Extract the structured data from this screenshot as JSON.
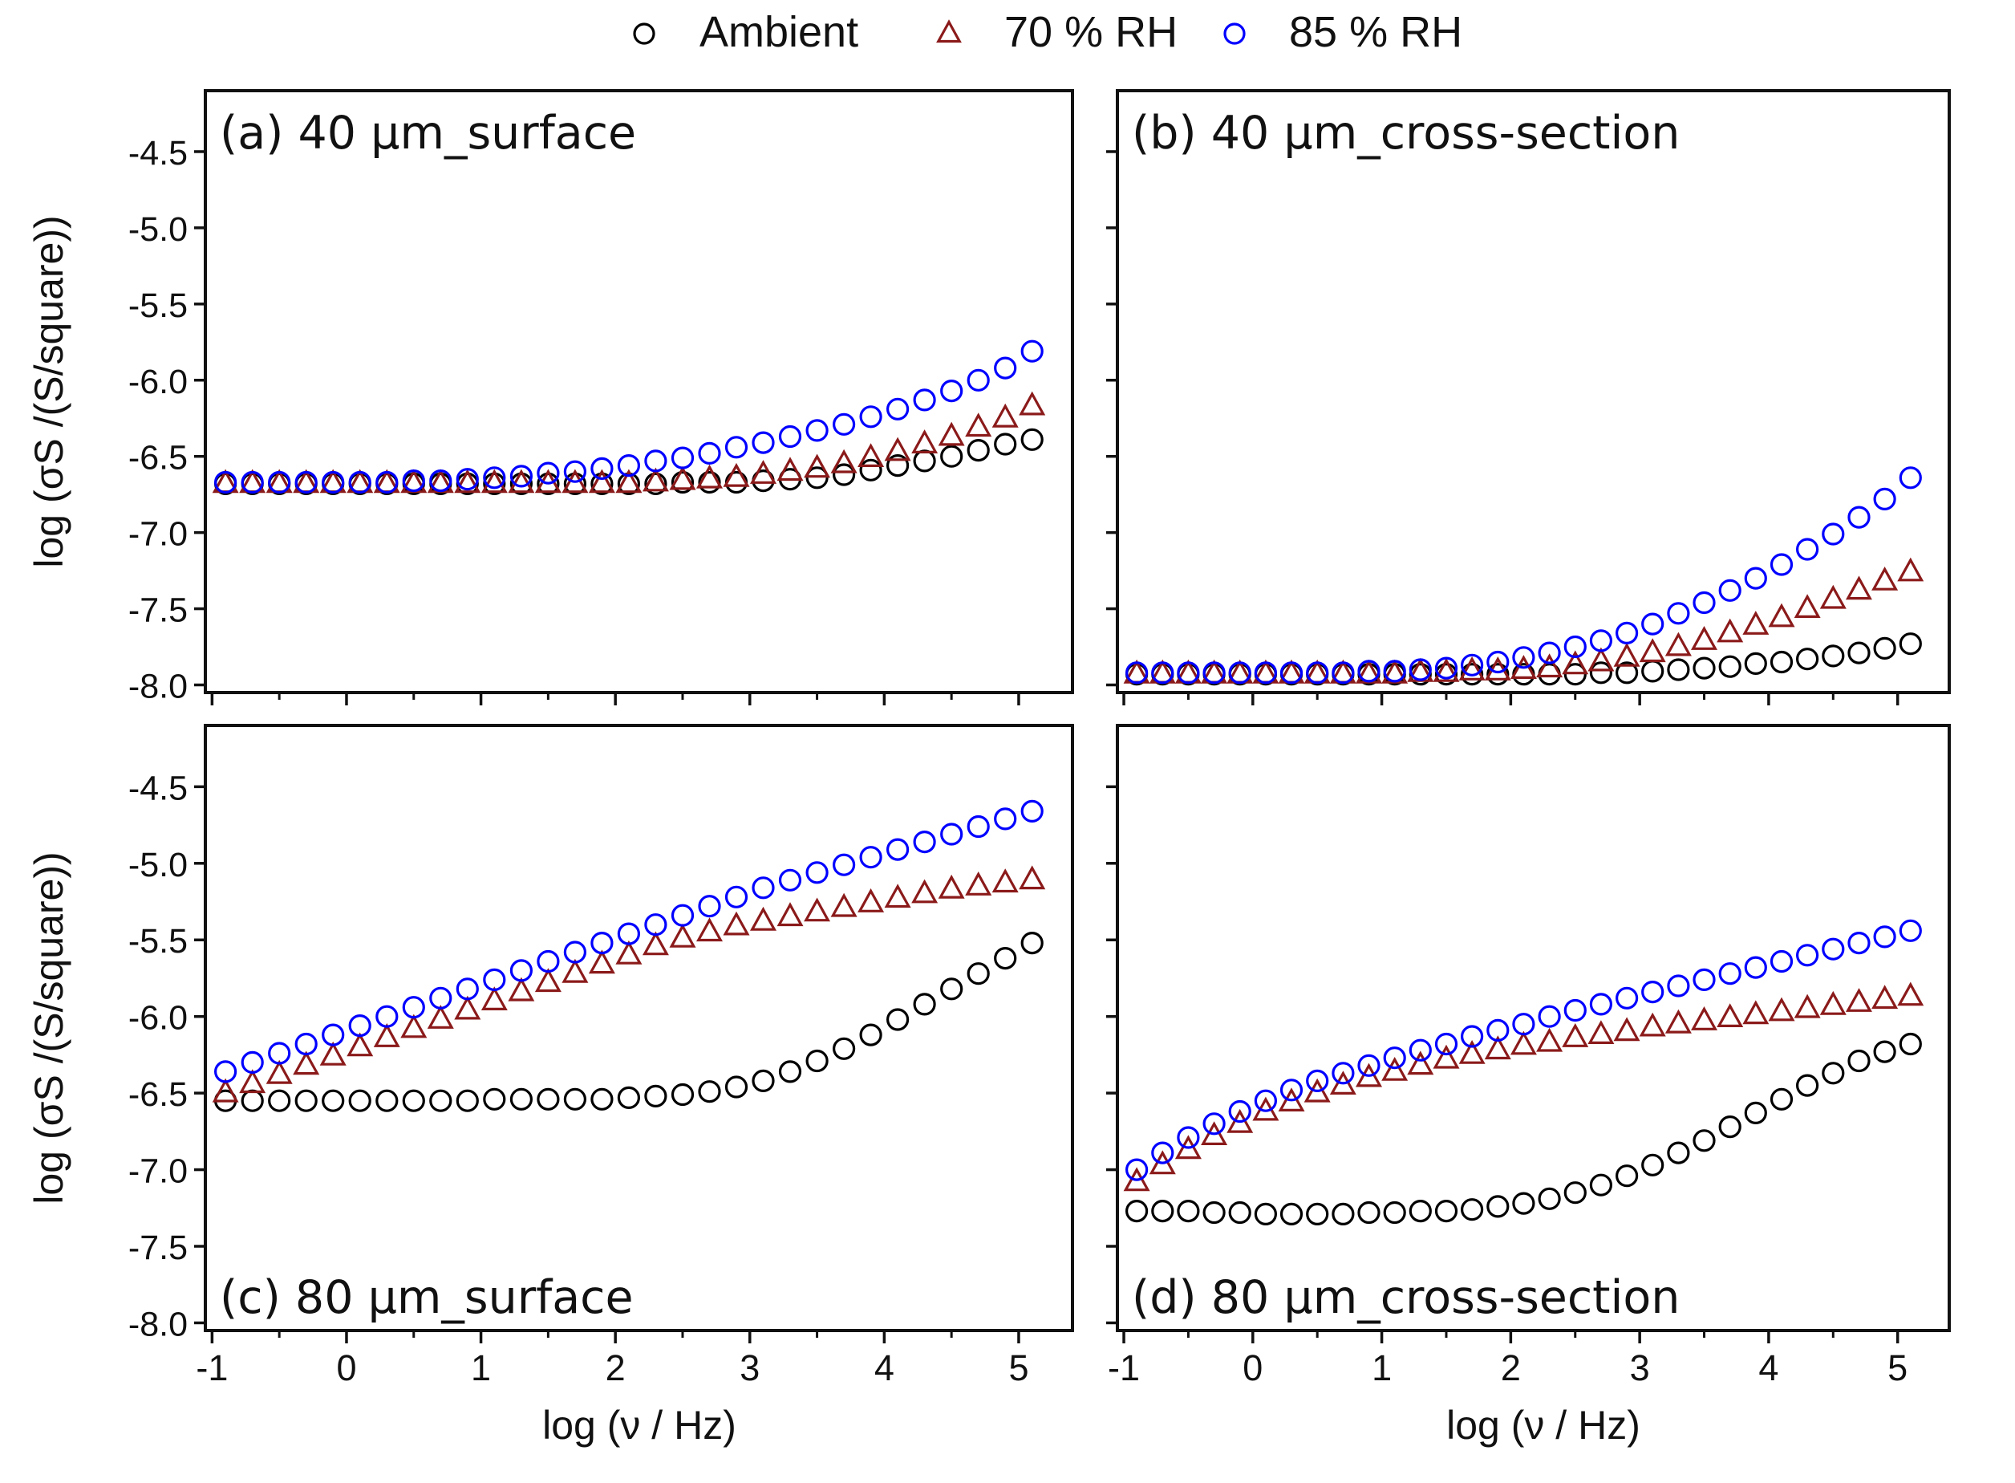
{
  "chart_data": {
    "type": "scatter",
    "layout": "2x2 grid",
    "legend": {
      "placement": "top-center",
      "entries": [
        {
          "name": "Ambient",
          "marker": "circle",
          "color": "#000000"
        },
        {
          "name": "70 % RH",
          "marker": "triangle",
          "color": "#8b1a1a"
        },
        {
          "name": "85 % RH",
          "marker": "circle",
          "color": "#0000ff"
        }
      ]
    },
    "xlabel": "log (ν / Hz)",
    "ylabel": "log (σS /(S/square))",
    "xlim": [
      -1.05,
      5.4
    ],
    "ylim": [
      -8.05,
      -4.1
    ],
    "xticks": [
      -1,
      0,
      1,
      2,
      3,
      4,
      5
    ],
    "xtick_labels": [
      "-1",
      "0",
      "1",
      "2",
      "3",
      "4",
      "5"
    ],
    "yticks": [
      -4.5,
      -5.0,
      -5.5,
      -6.0,
      -6.5,
      -7.0,
      -7.5,
      -8.0
    ],
    "ytick_labels": [
      "-4.5",
      "-5.0",
      "-5.5",
      "-6.0",
      "-6.5",
      "-7.0",
      "-7.5",
      "-8.0"
    ],
    "x": [
      -0.9,
      -0.7,
      -0.5,
      -0.3,
      -0.1,
      0.1,
      0.3,
      0.5,
      0.7,
      0.9,
      1.1,
      1.3,
      1.5,
      1.7,
      1.9,
      2.1,
      2.3,
      2.5,
      2.7,
      2.9,
      3.1,
      3.3,
      3.5,
      3.7,
      3.9,
      4.1,
      4.3,
      4.5,
      4.7,
      4.9,
      5.1
    ],
    "panels": [
      {
        "label": "(a) 40 μm_surface",
        "label_position": "top-left",
        "series": [
          {
            "name": "Ambient",
            "values": [
              -6.68,
              -6.68,
              -6.68,
              -6.68,
              -6.68,
              -6.68,
              -6.68,
              -6.68,
              -6.68,
              -6.68,
              -6.68,
              -6.68,
              -6.68,
              -6.68,
              -6.68,
              -6.68,
              -6.68,
              -6.67,
              -6.67,
              -6.67,
              -6.66,
              -6.65,
              -6.64,
              -6.62,
              -6.59,
              -6.56,
              -6.53,
              -6.5,
              -6.46,
              -6.42,
              -6.39
            ]
          },
          {
            "name": "70 % RH",
            "values": [
              -6.68,
              -6.68,
              -6.68,
              -6.68,
              -6.68,
              -6.68,
              -6.68,
              -6.68,
              -6.68,
              -6.68,
              -6.68,
              -6.68,
              -6.68,
              -6.68,
              -6.68,
              -6.68,
              -6.67,
              -6.66,
              -6.65,
              -6.64,
              -6.62,
              -6.6,
              -6.58,
              -6.55,
              -6.51,
              -6.47,
              -6.42,
              -6.37,
              -6.31,
              -6.25,
              -6.17
            ]
          },
          {
            "name": "85 % RH",
            "values": [
              -6.67,
              -6.67,
              -6.67,
              -6.67,
              -6.67,
              -6.67,
              -6.67,
              -6.66,
              -6.66,
              -6.65,
              -6.64,
              -6.63,
              -6.61,
              -6.6,
              -6.58,
              -6.56,
              -6.53,
              -6.51,
              -6.48,
              -6.44,
              -6.41,
              -6.37,
              -6.33,
              -6.29,
              -6.24,
              -6.19,
              -6.13,
              -6.07,
              -6.0,
              -5.92,
              -5.81
            ]
          }
        ]
      },
      {
        "label": "(b) 40 μm_cross-section",
        "label_position": "top-left",
        "series": [
          {
            "name": "Ambient",
            "values": [
              -7.93,
              -7.93,
              -7.93,
              -7.93,
              -7.93,
              -7.93,
              -7.93,
              -7.93,
              -7.93,
              -7.93,
              -7.93,
              -7.93,
              -7.93,
              -7.93,
              -7.93,
              -7.93,
              -7.93,
              -7.93,
              -7.92,
              -7.92,
              -7.91,
              -7.9,
              -7.89,
              -7.88,
              -7.86,
              -7.85,
              -7.83,
              -7.81,
              -7.79,
              -7.76,
              -7.73
            ]
          },
          {
            "name": "70 % RH",
            "values": [
              -7.93,
              -7.93,
              -7.93,
              -7.93,
              -7.93,
              -7.93,
              -7.93,
              -7.93,
              -7.93,
              -7.93,
              -7.93,
              -7.92,
              -7.92,
              -7.91,
              -7.91,
              -7.9,
              -7.89,
              -7.87,
              -7.85,
              -7.82,
              -7.79,
              -7.75,
              -7.71,
              -7.66,
              -7.61,
              -7.56,
              -7.5,
              -7.44,
              -7.38,
              -7.32,
              -7.26
            ]
          },
          {
            "name": "85 % RH",
            "values": [
              -7.92,
              -7.92,
              -7.92,
              -7.92,
              -7.92,
              -7.92,
              -7.92,
              -7.92,
              -7.92,
              -7.91,
              -7.91,
              -7.9,
              -7.89,
              -7.87,
              -7.85,
              -7.82,
              -7.79,
              -7.75,
              -7.71,
              -7.66,
              -7.6,
              -7.53,
              -7.46,
              -7.38,
              -7.3,
              -7.21,
              -7.11,
              -7.01,
              -6.9,
              -6.78,
              -6.64
            ]
          }
        ]
      },
      {
        "label": "(c) 80 μm_surface",
        "label_position": "bottom-left",
        "series": [
          {
            "name": "Ambient",
            "values": [
              -6.55,
              -6.55,
              -6.55,
              -6.55,
              -6.55,
              -6.55,
              -6.55,
              -6.55,
              -6.55,
              -6.55,
              -6.54,
              -6.54,
              -6.54,
              -6.54,
              -6.54,
              -6.53,
              -6.52,
              -6.51,
              -6.49,
              -6.46,
              -6.42,
              -6.36,
              -6.29,
              -6.21,
              -6.12,
              -6.02,
              -5.92,
              -5.82,
              -5.72,
              -5.62,
              -5.52
            ]
          },
          {
            "name": "70 % RH",
            "values": [
              -6.5,
              -6.44,
              -6.38,
              -6.32,
              -6.26,
              -6.2,
              -6.14,
              -6.08,
              -6.02,
              -5.96,
              -5.9,
              -5.84,
              -5.78,
              -5.72,
              -5.66,
              -5.6,
              -5.54,
              -5.49,
              -5.45,
              -5.41,
              -5.38,
              -5.35,
              -5.32,
              -5.29,
              -5.26,
              -5.23,
              -5.2,
              -5.17,
              -5.15,
              -5.13,
              -5.11
            ]
          },
          {
            "name": "85 % RH",
            "values": [
              -6.36,
              -6.3,
              -6.24,
              -6.18,
              -6.12,
              -6.06,
              -6.0,
              -5.94,
              -5.88,
              -5.82,
              -5.76,
              -5.7,
              -5.64,
              -5.58,
              -5.52,
              -5.46,
              -5.4,
              -5.34,
              -5.28,
              -5.22,
              -5.16,
              -5.11,
              -5.06,
              -5.01,
              -4.96,
              -4.91,
              -4.86,
              -4.81,
              -4.76,
              -4.71,
              -4.66
            ]
          }
        ]
      },
      {
        "label": "(d) 80 μm_cross-section",
        "label_position": "bottom-left",
        "series": [
          {
            "name": "Ambient",
            "values": [
              -7.27,
              -7.27,
              -7.27,
              -7.28,
              -7.28,
              -7.29,
              -7.29,
              -7.29,
              -7.29,
              -7.28,
              -7.28,
              -7.27,
              -7.27,
              -7.26,
              -7.24,
              -7.22,
              -7.19,
              -7.15,
              -7.1,
              -7.04,
              -6.97,
              -6.89,
              -6.81,
              -6.72,
              -6.63,
              -6.54,
              -6.45,
              -6.37,
              -6.29,
              -6.23,
              -6.18
            ]
          },
          {
            "name": "70 % RH",
            "values": [
              -7.08,
              -6.97,
              -6.87,
              -6.78,
              -6.7,
              -6.62,
              -6.56,
              -6.5,
              -6.45,
              -6.4,
              -6.36,
              -6.32,
              -6.28,
              -6.25,
              -6.22,
              -6.19,
              -6.17,
              -6.14,
              -6.12,
              -6.1,
              -6.07,
              -6.05,
              -6.03,
              -6.01,
              -5.99,
              -5.97,
              -5.95,
              -5.93,
              -5.91,
              -5.89,
              -5.87
            ]
          },
          {
            "name": "85 % RH",
            "values": [
              -7.0,
              -6.89,
              -6.79,
              -6.7,
              -6.62,
              -6.55,
              -6.48,
              -6.42,
              -6.37,
              -6.32,
              -6.27,
              -6.22,
              -6.18,
              -6.13,
              -6.09,
              -6.05,
              -6.0,
              -5.96,
              -5.92,
              -5.88,
              -5.84,
              -5.8,
              -5.76,
              -5.72,
              -5.68,
              -5.64,
              -5.6,
              -5.56,
              -5.52,
              -5.48,
              -5.44
            ]
          }
        ]
      }
    ]
  }
}
